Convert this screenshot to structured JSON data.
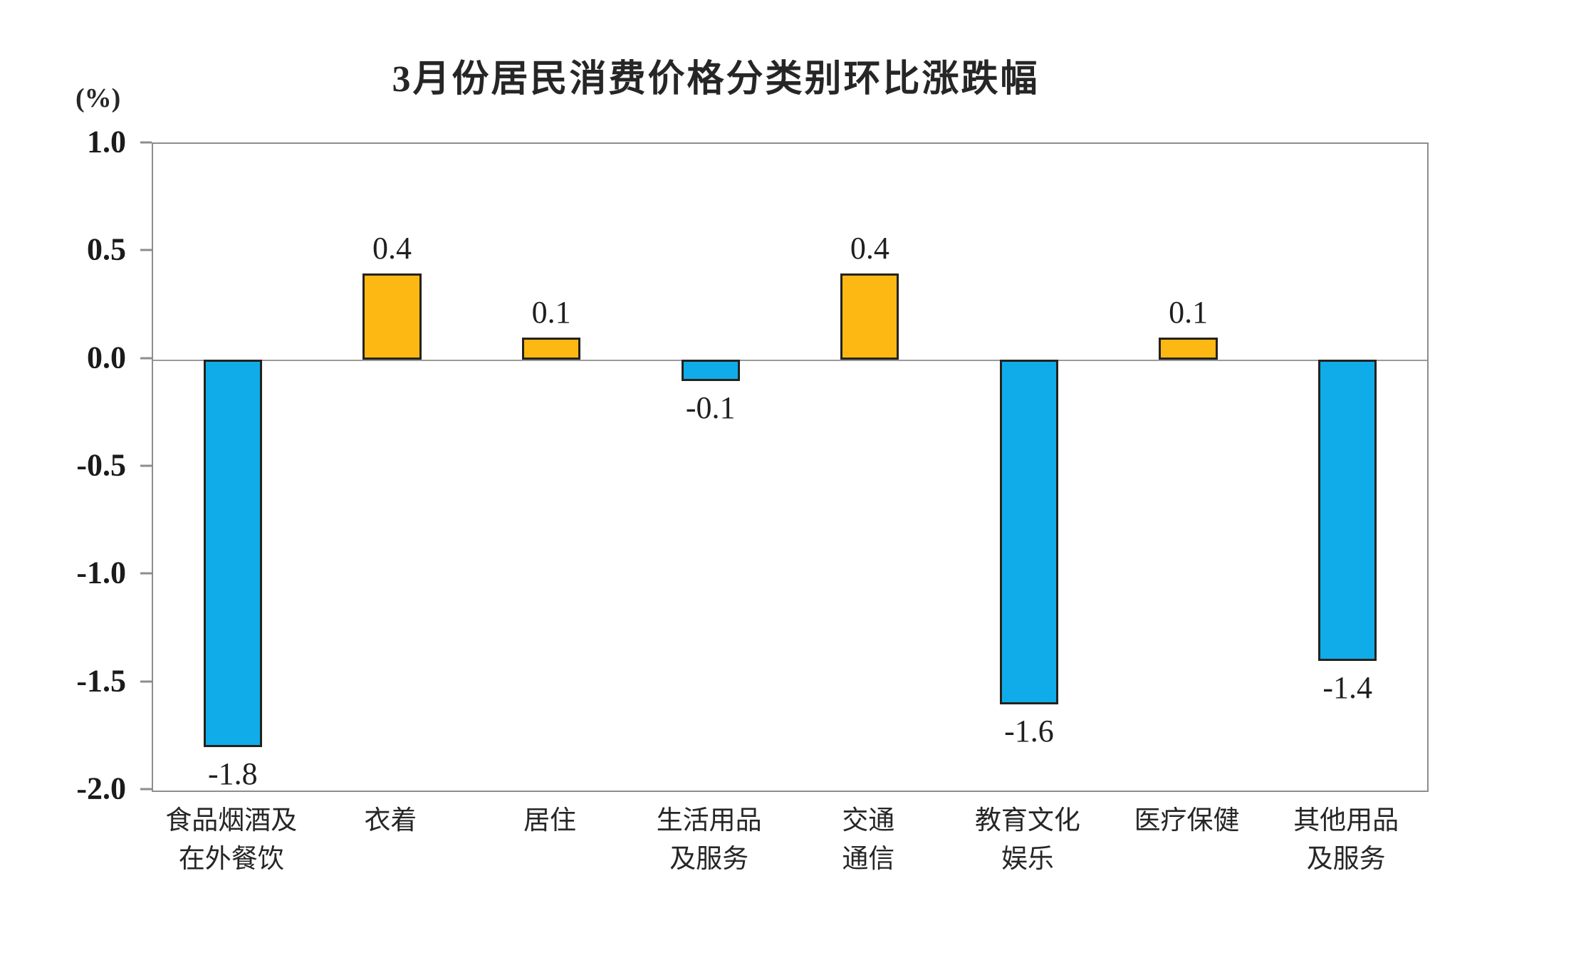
{
  "chart_data": {
    "type": "bar",
    "title": "3月份居民消费价格分类别环比涨跌幅",
    "y_unit_label": "(%)",
    "categories": [
      "食品烟酒及\n在外餐饮",
      "衣着",
      "居住",
      "生活用品\n及服务",
      "交通\n通信",
      "教育文化\n娱乐",
      "医疗保健",
      "其他用品\n及服务"
    ],
    "values": [
      -1.8,
      0.4,
      0.1,
      -0.1,
      0.4,
      -1.6,
      0.1,
      -1.4
    ],
    "value_labels": [
      "-1.8",
      "0.4",
      "0.1",
      "-0.1",
      "0.4",
      "-1.6",
      "0.1",
      "-1.4"
    ],
    "ylim": [
      -2.0,
      1.0
    ],
    "ytick_labels": [
      "1.0",
      "0.5",
      "0.0",
      "-0.5",
      "-1.0",
      "-1.5",
      "-2.0"
    ],
    "grid": false,
    "legend": "none",
    "colors": {
      "positive_bar": "#FDB813",
      "negative_bar": "#0FACE9",
      "bar_border": "#24221d",
      "zero_line": "#9b9b9b",
      "plot_border": "#8d8d8d",
      "text": "#262626"
    }
  }
}
